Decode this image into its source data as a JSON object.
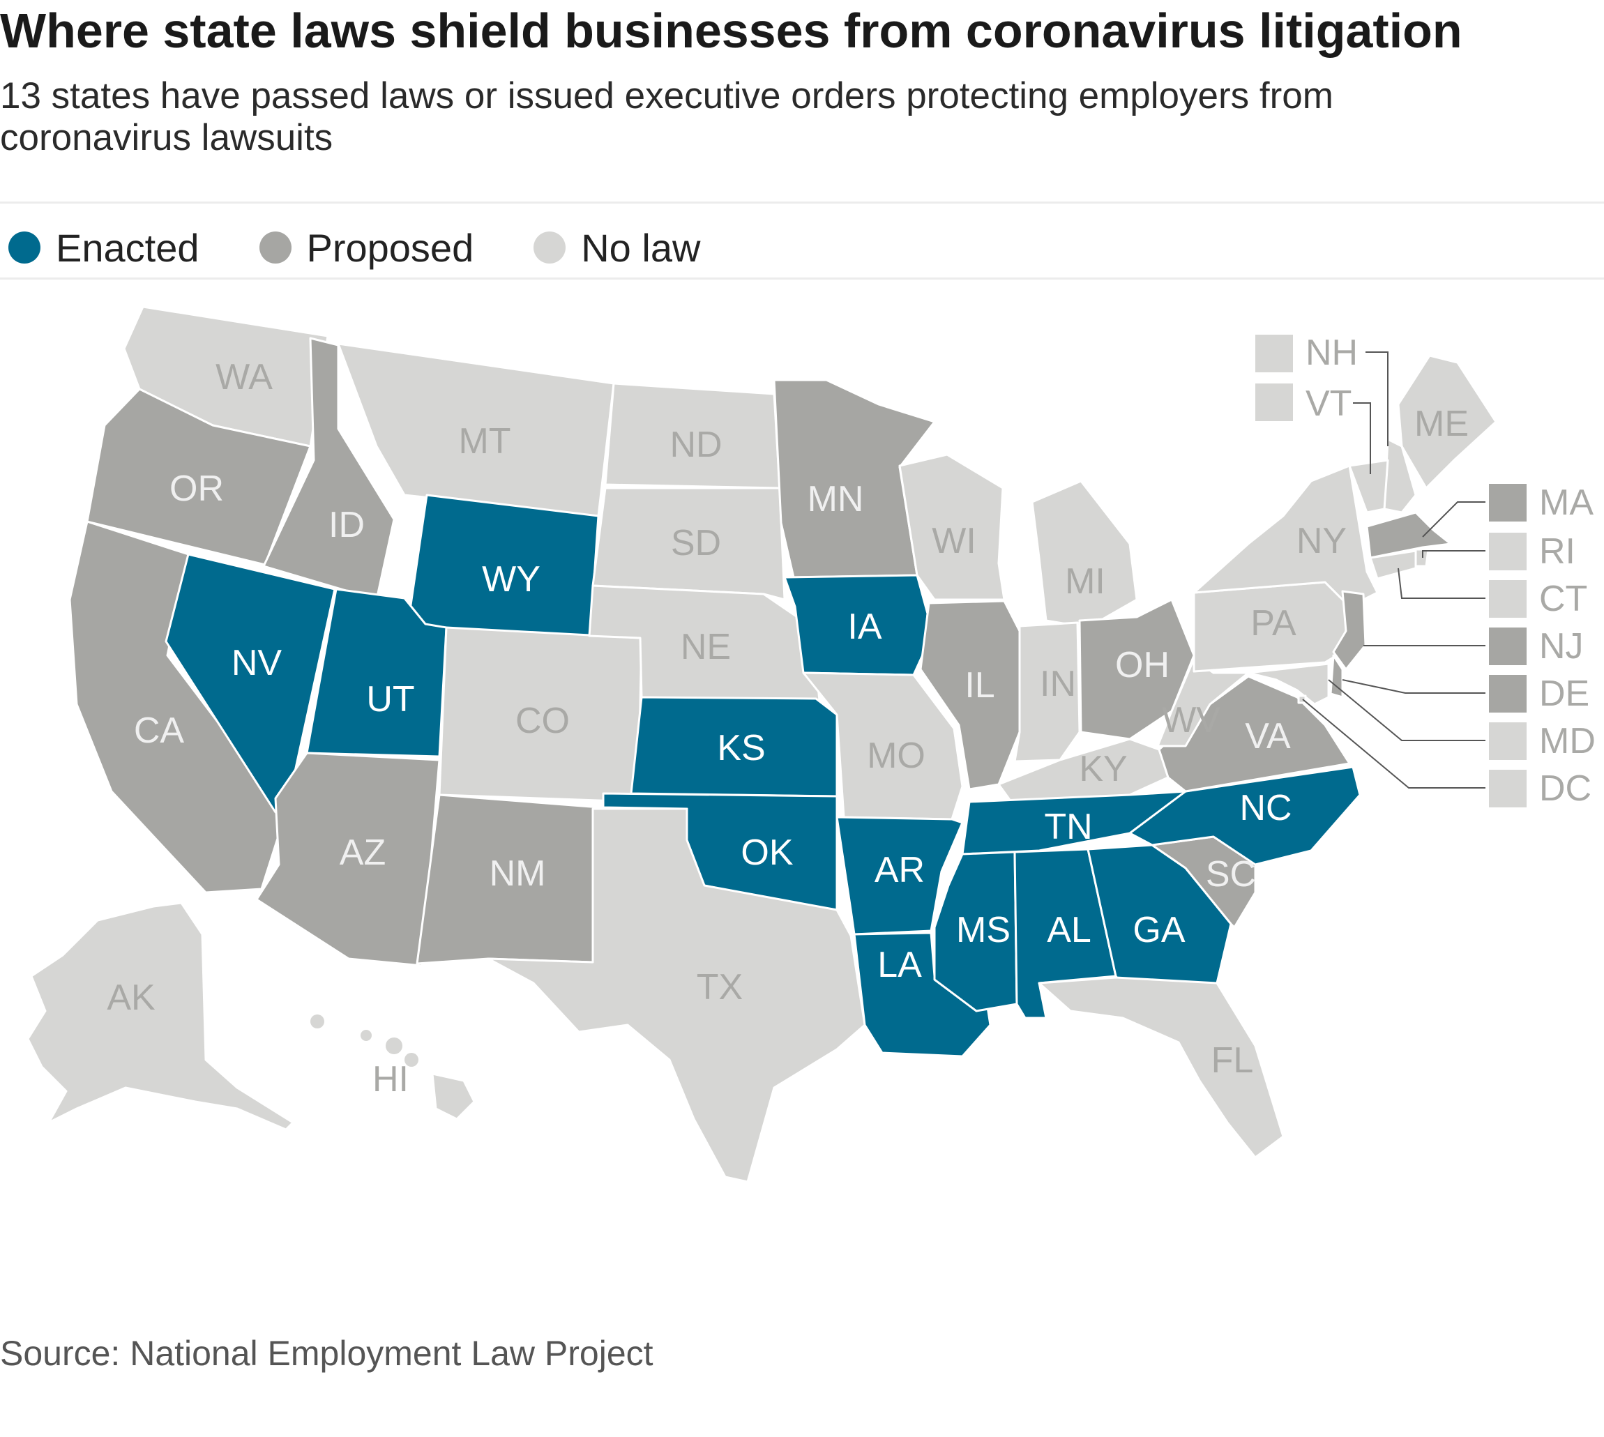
{
  "header": {
    "title": "Where state laws shield businesses from coronavirus litigation",
    "subtitle": "13 states have passed laws or issued executive orders protecting employers from coronavirus lawsuits"
  },
  "colors": {
    "enacted": "#006a8e",
    "proposed": "#a6a6a3",
    "no_law": "#d6d6d4"
  },
  "legend": [
    {
      "key": "enacted",
      "label": "Enacted"
    },
    {
      "key": "proposed",
      "label": "Proposed"
    },
    {
      "key": "no_law",
      "label": "No law"
    }
  ],
  "states": [
    {
      "abbr": "WA",
      "status": "no_law"
    },
    {
      "abbr": "OR",
      "status": "proposed"
    },
    {
      "abbr": "CA",
      "status": "proposed"
    },
    {
      "abbr": "NV",
      "status": "enacted"
    },
    {
      "abbr": "ID",
      "status": "proposed"
    },
    {
      "abbr": "MT",
      "status": "no_law"
    },
    {
      "abbr": "WY",
      "status": "enacted"
    },
    {
      "abbr": "UT",
      "status": "enacted"
    },
    {
      "abbr": "AZ",
      "status": "proposed"
    },
    {
      "abbr": "CO",
      "status": "no_law"
    },
    {
      "abbr": "NM",
      "status": "proposed"
    },
    {
      "abbr": "ND",
      "status": "no_law"
    },
    {
      "abbr": "SD",
      "status": "no_law"
    },
    {
      "abbr": "NE",
      "status": "no_law"
    },
    {
      "abbr": "KS",
      "status": "enacted"
    },
    {
      "abbr": "OK",
      "status": "enacted"
    },
    {
      "abbr": "TX",
      "status": "no_law"
    },
    {
      "abbr": "MN",
      "status": "proposed"
    },
    {
      "abbr": "IA",
      "status": "enacted"
    },
    {
      "abbr": "MO",
      "status": "no_law"
    },
    {
      "abbr": "AR",
      "status": "enacted"
    },
    {
      "abbr": "LA",
      "status": "enacted"
    },
    {
      "abbr": "WI",
      "status": "no_law"
    },
    {
      "abbr": "IL",
      "status": "proposed"
    },
    {
      "abbr": "MI",
      "status": "no_law"
    },
    {
      "abbr": "IN",
      "status": "no_law"
    },
    {
      "abbr": "OH",
      "status": "proposed"
    },
    {
      "abbr": "KY",
      "status": "no_law"
    },
    {
      "abbr": "TN",
      "status": "enacted"
    },
    {
      "abbr": "MS",
      "status": "enacted"
    },
    {
      "abbr": "AL",
      "status": "enacted"
    },
    {
      "abbr": "GA",
      "status": "enacted"
    },
    {
      "abbr": "FL",
      "status": "no_law"
    },
    {
      "abbr": "SC",
      "status": "proposed"
    },
    {
      "abbr": "NC",
      "status": "enacted"
    },
    {
      "abbr": "VA",
      "status": "proposed"
    },
    {
      "abbr": "WV",
      "status": "no_law"
    },
    {
      "abbr": "PA",
      "status": "no_law"
    },
    {
      "abbr": "NY",
      "status": "no_law"
    },
    {
      "abbr": "ME",
      "status": "no_law"
    },
    {
      "abbr": "NH",
      "status": "no_law"
    },
    {
      "abbr": "VT",
      "status": "no_law"
    },
    {
      "abbr": "MA",
      "status": "proposed"
    },
    {
      "abbr": "RI",
      "status": "no_law"
    },
    {
      "abbr": "CT",
      "status": "no_law"
    },
    {
      "abbr": "NJ",
      "status": "proposed"
    },
    {
      "abbr": "DE",
      "status": "proposed"
    },
    {
      "abbr": "MD",
      "status": "no_law"
    },
    {
      "abbr": "DC",
      "status": "no_law"
    },
    {
      "abbr": "AK",
      "status": "no_law"
    },
    {
      "abbr": "HI",
      "status": "no_law"
    }
  ],
  "source": "Source: National Employment Law Project"
}
